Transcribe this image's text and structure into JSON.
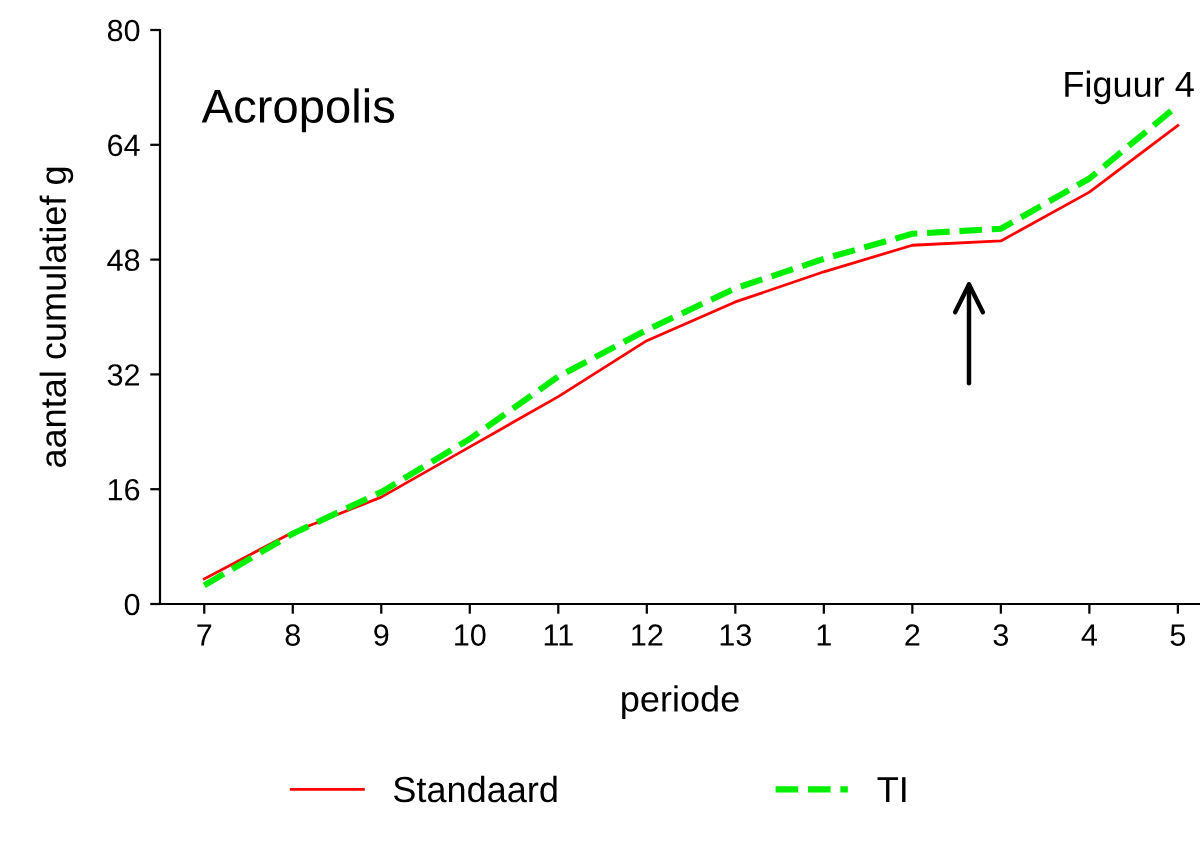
{
  "chart_data": {
    "type": "line",
    "title": "Acropolis",
    "xlabel": "periode",
    "ylabel": "aantal cumulatief g",
    "annotations": [
      "Figuur 4"
    ],
    "categories": [
      "7",
      "8",
      "9",
      "10",
      "11",
      "12",
      "13",
      "1",
      "2",
      "3",
      "4",
      "5"
    ],
    "series": [
      {
        "name": "Standaard",
        "color": "#ff0000",
        "line_style": "solid",
        "values": [
          3.5,
          10.0,
          14.9,
          21.9,
          28.9,
          36.7,
          42.1,
          46.3,
          50.0,
          50.6,
          57.4,
          66.7
        ]
      },
      {
        "name": "TI",
        "color": "#00ee00",
        "line_style": "dashed",
        "values": [
          2.6,
          9.8,
          15.6,
          23.0,
          31.7,
          38.2,
          44.0,
          48.1,
          51.6,
          52.3,
          59.3,
          69.5
        ]
      }
    ],
    "ylim": [
      0,
      80
    ],
    "yticks": [
      0,
      16,
      32,
      48,
      64,
      80
    ],
    "grid": false,
    "legend": "bottom",
    "marker": "none"
  }
}
